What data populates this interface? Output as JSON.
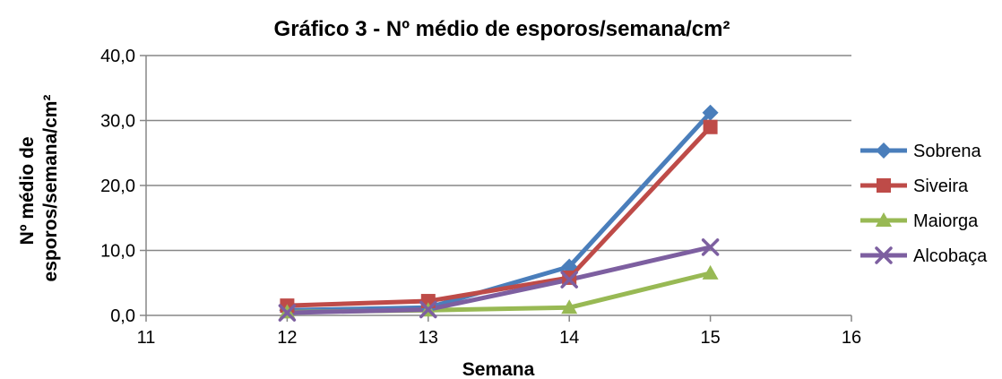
{
  "chart_data": {
    "type": "line",
    "title": "Gráfico 3 - Nº médio de esporos/semana/cm²",
    "xlabel": "Semana",
    "ylabel_lines": [
      "Nº  médio de",
      "esporos/semana/cm²"
    ],
    "xlim": [
      11,
      16
    ],
    "ylim": [
      0,
      40
    ],
    "x_ticks": [
      "11",
      "12",
      "13",
      "14",
      "15",
      "16"
    ],
    "y_ticks": [
      "0,0",
      "10,0",
      "20,0",
      "30,0",
      "40,0"
    ],
    "x": [
      12,
      13,
      14,
      15
    ],
    "grid": "horizontal",
    "legend_position": "right",
    "series": [
      {
        "name": "Sobrena",
        "values": [
          0.8,
          1.2,
          7.5,
          31.2
        ],
        "color": "#4A7EBB",
        "marker": "diamond"
      },
      {
        "name": "Siveira",
        "values": [
          1.5,
          2.2,
          5.8,
          29.0
        ],
        "color": "#BE4B48",
        "marker": "square"
      },
      {
        "name": "Maiorga",
        "values": [
          0.5,
          0.8,
          1.2,
          6.5
        ],
        "color": "#98B954",
        "marker": "triangle"
      },
      {
        "name": "Alcobaça",
        "values": [
          0.4,
          0.9,
          5.5,
          10.5
        ],
        "color": "#7D5FA0",
        "marker": "x"
      }
    ]
  }
}
